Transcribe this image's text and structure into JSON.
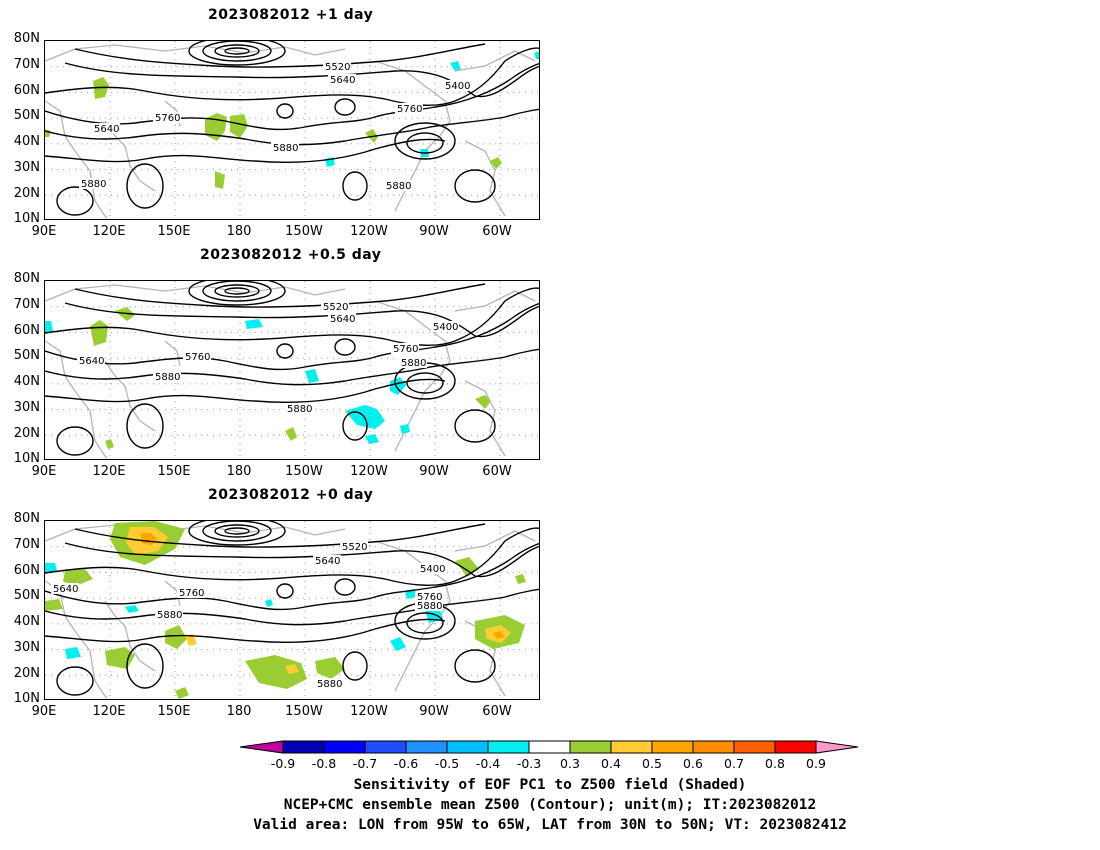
{
  "colors": {
    "neg9": "#c000a0",
    "neg8": "#0000b0",
    "neg7": "#0000ff",
    "neg6": "#1f4cff",
    "neg5": "#1e90ff",
    "neg4": "#00bfff",
    "neg3": "#00f0f0",
    "white": "#ffffff",
    "pos3": "#9acd32",
    "pos4": "#ffcc33",
    "pos5": "#ffa500",
    "pos6": "#ff8c00",
    "pos7": "#ff6000",
    "pos8": "#ff2e1f",
    "pos9": "#ff0000",
    "over": "#ff99cc",
    "coast": "#b4b4b4",
    "contour": "#000000",
    "grid": "#9a9a9a"
  },
  "panels": [
    {
      "title": "2023082012  +1 day",
      "lat_labels": [
        "80N",
        "70N",
        "60N",
        "50N",
        "40N",
        "30N",
        "20N",
        "10N"
      ],
      "lon_labels": [
        "90E",
        "120E",
        "150E",
        "180",
        "150W",
        "120W",
        "90W",
        "60W"
      ],
      "contour_labels": [
        "5520",
        "5640",
        "5400",
        "5760",
        "5640",
        "5760",
        "5880",
        "5880",
        "5880"
      ]
    },
    {
      "title": "2023082012  +0.5 day",
      "lat_labels": [
        "80N",
        "70N",
        "60N",
        "50N",
        "40N",
        "30N",
        "20N",
        "10N"
      ],
      "lon_labels": [
        "90E",
        "120E",
        "150E",
        "180",
        "150W",
        "120W",
        "90W",
        "60W"
      ],
      "contour_labels": [
        "5520",
        "5640",
        "5400",
        "5760",
        "5640",
        "5760",
        "5880",
        "5880",
        "5880"
      ]
    },
    {
      "title": "2023082012  +0 day",
      "lat_labels": [
        "80N",
        "70N",
        "60N",
        "50N",
        "40N",
        "30N",
        "20N",
        "10N"
      ],
      "lon_labels": [
        "90E",
        "120E",
        "150E",
        "180",
        "150W",
        "120W",
        "90W",
        "60W"
      ],
      "contour_labels": [
        "5520",
        "5640",
        "5400",
        "5640",
        "5760",
        "5760",
        "5880",
        "5880",
        "5880"
      ]
    }
  ],
  "colorbar": {
    "labels": [
      "-0.9",
      "-0.8",
      "-0.7",
      "-0.6",
      "-0.5",
      "-0.4",
      "-0.3",
      "0.3",
      "0.4",
      "0.5",
      "0.6",
      "0.7",
      "0.8",
      "0.9"
    ]
  },
  "caption": {
    "line1": "Sensitivity of EOF PC1 to Z500 field (Shaded)",
    "line2": "NCEP+CMC ensemble mean Z500 (Contour); unit(m); IT:2023082012",
    "line3": "Valid area: LON from 95W to 65W, LAT from 30N to 50N; VT: 2023082412"
  }
}
